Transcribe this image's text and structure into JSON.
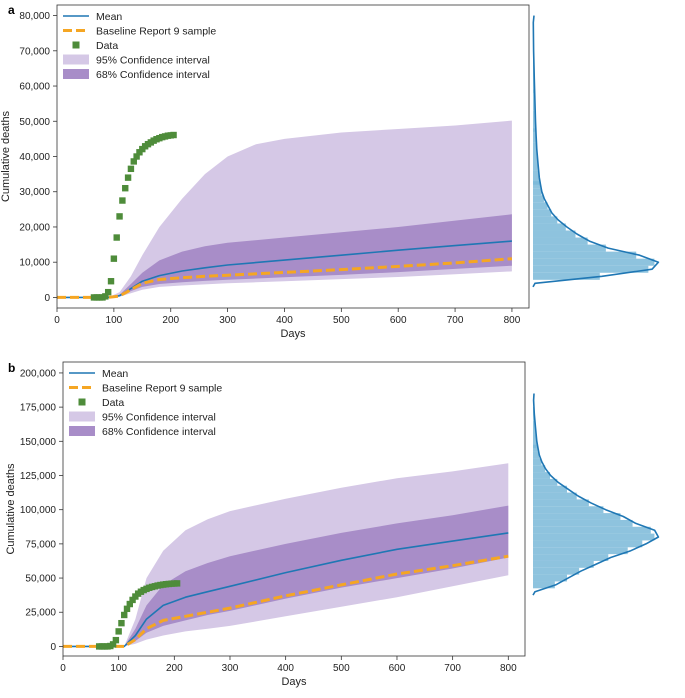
{
  "colors": {
    "mean": "#1f77b4",
    "baseline": "#f5a623",
    "data": "#4e8c3a",
    "ci95": "#d5c8e6",
    "ci68": "#a88dc8",
    "hist": "#7ab8d8"
  },
  "chart_data": [
    {
      "panel": "a",
      "type": "line",
      "title": "",
      "xlabel": "Days",
      "ylabel": "Cumulative deaths",
      "xlim": [
        0,
        830
      ],
      "ylim": [
        -3000,
        83000
      ],
      "xticks": [
        0,
        100,
        200,
        300,
        400,
        500,
        600,
        700,
        800
      ],
      "yticks": [
        0,
        10000,
        20000,
        30000,
        40000,
        50000,
        60000,
        70000,
        80000
      ],
      "ytick_labels": [
        "0",
        "10,000",
        "20,000",
        "30,000",
        "40,000",
        "50,000",
        "60,000",
        "70,000",
        "80,000"
      ],
      "legend": {
        "position": "top-left",
        "entries": [
          "Mean",
          "Baseline Report 9 sample",
          "Data",
          "95% Confidence interval",
          "68% Confidence interval"
        ]
      },
      "series": [
        {
          "name": "Mean",
          "x": [
            0,
            90,
            110,
            130,
            150,
            180,
            220,
            260,
            300,
            400,
            500,
            600,
            700,
            800
          ],
          "values": [
            0,
            0,
            500,
            2500,
            4600,
            6200,
            7500,
            8400,
            9200,
            10600,
            12000,
            13400,
            14700,
            16000
          ]
        },
        {
          "name": "Baseline Report 9 sample",
          "x": [
            0,
            90,
            110,
            130,
            150,
            180,
            220,
            260,
            300,
            400,
            500,
            600,
            700,
            800
          ],
          "values": [
            0,
            0,
            400,
            2200,
            4000,
            5100,
            5600,
            6000,
            6300,
            7100,
            7900,
            8800,
            9800,
            11000
          ]
        },
        {
          "name": "Data",
          "x": [
            65,
            70,
            75,
            80,
            85,
            90,
            95,
            100,
            105,
            110,
            115,
            120,
            125,
            130,
            135,
            140,
            145,
            150,
            155,
            160,
            165,
            170,
            175,
            180,
            185,
            190,
            195,
            200,
            205
          ],
          "values": [
            0,
            0,
            0,
            0,
            300,
            1500,
            4600,
            11000,
            17000,
            23000,
            27500,
            31000,
            34000,
            36500,
            38600,
            40000,
            41200,
            42100,
            42900,
            43500,
            44000,
            44500,
            44900,
            45200,
            45500,
            45700,
            45900,
            46000,
            46100
          ]
        },
        {
          "name": "95% Confidence interval",
          "x": [
            0,
            90,
            110,
            130,
            150,
            180,
            220,
            260,
            300,
            350,
            400,
            500,
            600,
            700,
            800
          ],
          "lower": [
            0,
            0,
            200,
            1200,
            2200,
            3000,
            3400,
            3700,
            4000,
            4300,
            4600,
            5200,
            5800,
            6600,
            7400
          ],
          "upper": [
            0,
            0,
            1500,
            6000,
            12000,
            20000,
            28000,
            35000,
            40000,
            43500,
            45000,
            46800,
            47800,
            48800,
            50200
          ]
        },
        {
          "name": "68% Confidence interval",
          "x": [
            0,
            90,
            110,
            130,
            150,
            180,
            220,
            260,
            300,
            400,
            500,
            600,
            700,
            800
          ],
          "lower": [
            0,
            0,
            300,
            1800,
            3000,
            3800,
            4300,
            4700,
            5000,
            5700,
            6400,
            7200,
            8100,
            9000
          ],
          "upper": [
            0,
            0,
            800,
            3800,
            7000,
            10500,
            13000,
            14500,
            15500,
            17000,
            18500,
            20000,
            21800,
            23600
          ]
        }
      ],
      "histogram": {
        "bin_centers": [
          6000,
          8000,
          10000,
          12000,
          14000,
          16000,
          18000,
          20000,
          22000,
          24000,
          26000,
          28000,
          30000,
          32000,
          34000,
          38000,
          42000,
          46000,
          50000,
          56000,
          62000,
          70000,
          78000
        ],
        "density": [
          0.55,
          0.95,
          1.0,
          0.85,
          0.6,
          0.45,
          0.35,
          0.27,
          0.2,
          0.15,
          0.12,
          0.09,
          0.07,
          0.06,
          0.05,
          0.04,
          0.03,
          0.025,
          0.02,
          0.015,
          0.01,
          0.005,
          0.002
        ],
        "kde_peak": 10000
      }
    },
    {
      "panel": "b",
      "type": "line",
      "title": "",
      "xlabel": "Days",
      "ylabel": "Cumulative deaths",
      "xlim": [
        0,
        830
      ],
      "ylim": [
        -7000,
        208000
      ],
      "xticks": [
        0,
        100,
        200,
        300,
        400,
        500,
        600,
        700,
        800
      ],
      "yticks": [
        0,
        25000,
        50000,
        75000,
        100000,
        125000,
        150000,
        175000,
        200000
      ],
      "ytick_labels": [
        "0",
        "25,000",
        "50,000",
        "75,000",
        "100,000",
        "125,000",
        "150,000",
        "175,000",
        "200,000"
      ],
      "legend": {
        "position": "top-left",
        "entries": [
          "Mean",
          "Baseline Report 9 sample",
          "Data",
          "95% Confidence interval",
          "68% Confidence interval"
        ]
      },
      "series": [
        {
          "name": "Mean",
          "x": [
            0,
            110,
            130,
            150,
            180,
            220,
            260,
            300,
            400,
            500,
            600,
            700,
            800
          ],
          "values": [
            0,
            0,
            8000,
            20000,
            30000,
            36000,
            40000,
            44000,
            54000,
            63000,
            71000,
            77000,
            83000
          ]
        },
        {
          "name": "Baseline Report 9 sample",
          "x": [
            0,
            110,
            130,
            150,
            180,
            220,
            260,
            300,
            400,
            500,
            600,
            700,
            800
          ],
          "values": [
            0,
            0,
            5000,
            13000,
            19000,
            22000,
            25000,
            28000,
            37000,
            45000,
            53000,
            59000,
            66000
          ]
        },
        {
          "name": "Data",
          "x": [
            65,
            70,
            75,
            80,
            85,
            90,
            95,
            100,
            105,
            110,
            115,
            120,
            125,
            130,
            135,
            140,
            145,
            150,
            155,
            160,
            165,
            170,
            175,
            180,
            185,
            190,
            195,
            200,
            205
          ],
          "values": [
            0,
            0,
            0,
            0,
            300,
            1500,
            4600,
            11000,
            17000,
            23000,
            27500,
            31000,
            34000,
            36500,
            38600,
            40000,
            41200,
            42100,
            42900,
            43500,
            44000,
            44500,
            44900,
            45200,
            45500,
            45700,
            45900,
            46000,
            46100
          ]
        },
        {
          "name": "95% Confidence interval",
          "x": [
            0,
            110,
            130,
            150,
            180,
            220,
            260,
            300,
            400,
            500,
            600,
            700,
            800
          ],
          "lower": [
            0,
            0,
            2000,
            5000,
            8000,
            11000,
            13000,
            15000,
            22000,
            29000,
            36000,
            44000,
            52000
          ],
          "upper": [
            0,
            0,
            20000,
            50000,
            70000,
            85000,
            93000,
            99000,
            108000,
            116000,
            123000,
            128000,
            134000
          ]
        },
        {
          "name": "68% Confidence interval",
          "x": [
            0,
            110,
            130,
            150,
            180,
            220,
            260,
            300,
            400,
            500,
            600,
            700,
            800
          ],
          "lower": [
            0,
            0,
            4000,
            10000,
            15000,
            19000,
            23000,
            26000,
            35000,
            43000,
            50000,
            57000,
            65000
          ],
          "upper": [
            0,
            0,
            13000,
            30000,
            45000,
            55000,
            61000,
            66000,
            75000,
            83000,
            90000,
            96000,
            103000
          ]
        }
      ],
      "histogram": {
        "bin_centers": [
          45000,
          50000,
          55000,
          60000,
          65000,
          70000,
          75000,
          80000,
          85000,
          90000,
          95000,
          100000,
          105000,
          110000,
          115000,
          120000,
          125000,
          130000,
          135000,
          140000,
          145000,
          150000,
          160000,
          170000,
          180000
        ],
        "density": [
          0.18,
          0.28,
          0.38,
          0.5,
          0.62,
          0.78,
          0.9,
          1.0,
          0.97,
          0.82,
          0.72,
          0.58,
          0.46,
          0.36,
          0.28,
          0.2,
          0.14,
          0.1,
          0.07,
          0.05,
          0.04,
          0.03,
          0.02,
          0.01,
          0.005
        ],
        "kde_peak": 82000
      }
    }
  ]
}
